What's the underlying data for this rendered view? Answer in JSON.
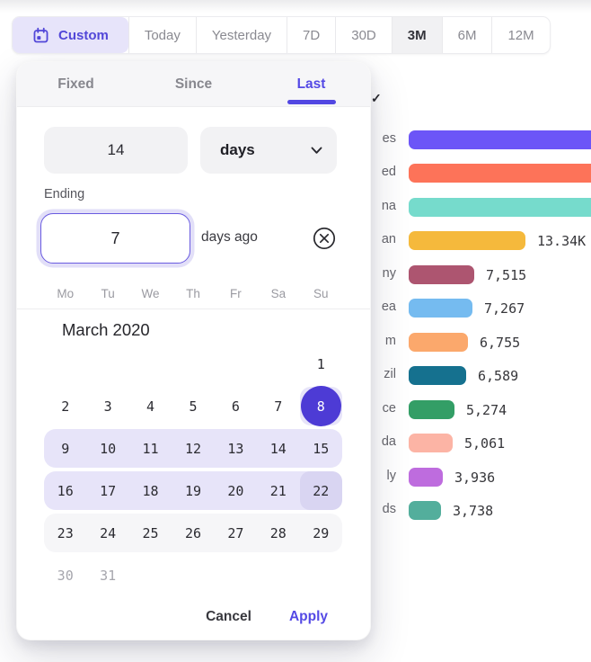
{
  "toolbar": {
    "custom": {
      "label": "Custom"
    },
    "items": [
      {
        "label": "Today",
        "active": false
      },
      {
        "label": "Yesterday",
        "active": false
      },
      {
        "label": "7D",
        "active": false
      },
      {
        "label": "30D",
        "active": false
      },
      {
        "label": "3M",
        "active": true
      },
      {
        "label": "6M",
        "active": false
      },
      {
        "label": "12M",
        "active": false
      }
    ]
  },
  "panel": {
    "tabs": [
      {
        "label": "Fixed",
        "active": false
      },
      {
        "label": "Since",
        "active": false
      },
      {
        "label": "Last",
        "active": true
      }
    ],
    "duration": {
      "value": "14",
      "unit": "days"
    },
    "ending": {
      "label": "Ending",
      "value": "7",
      "suffix": "days ago"
    },
    "calendar": {
      "weekdays": [
        "Mo",
        "Tu",
        "We",
        "Th",
        "Fr",
        "Sa",
        "Su"
      ],
      "month_title": "March 2020",
      "weeks": [
        {
          "style": "plain",
          "cells": [
            {
              "t": ""
            },
            {
              "t": ""
            },
            {
              "t": ""
            },
            {
              "t": ""
            },
            {
              "t": ""
            },
            {
              "t": ""
            },
            {
              "t": "1"
            }
          ]
        },
        {
          "style": "plain",
          "cells": [
            {
              "t": "2"
            },
            {
              "t": "3"
            },
            {
              "t": "4"
            },
            {
              "t": "5"
            },
            {
              "t": "6"
            },
            {
              "t": "7"
            },
            {
              "t": "8",
              "variant": "selected-start"
            }
          ]
        },
        {
          "style": "range",
          "cells": [
            {
              "t": "9"
            },
            {
              "t": "10"
            },
            {
              "t": "11"
            },
            {
              "t": "12"
            },
            {
              "t": "13"
            },
            {
              "t": "14"
            },
            {
              "t": "15"
            }
          ]
        },
        {
          "style": "range",
          "cells": [
            {
              "t": "16"
            },
            {
              "t": "17"
            },
            {
              "t": "18"
            },
            {
              "t": "19"
            },
            {
              "t": "20"
            },
            {
              "t": "21"
            },
            {
              "t": "22",
              "variant": "range-end"
            }
          ]
        },
        {
          "style": "hover",
          "cells": [
            {
              "t": "23"
            },
            {
              "t": "24"
            },
            {
              "t": "25"
            },
            {
              "t": "26"
            },
            {
              "t": "27"
            },
            {
              "t": "28"
            },
            {
              "t": "29"
            }
          ]
        },
        {
          "style": "plain",
          "cells": [
            {
              "t": "30",
              "variant": "muted"
            },
            {
              "t": "31",
              "variant": "muted"
            },
            {
              "t": ""
            },
            {
              "t": ""
            },
            {
              "t": ""
            },
            {
              "t": ""
            },
            {
              "t": ""
            }
          ]
        }
      ]
    },
    "footer": {
      "cancel": "Cancel",
      "apply": "Apply"
    }
  },
  "background": {
    "checkmark_glyph": "✓"
  },
  "colors": {
    "accent": "#5449E0",
    "selected_day": "#4D3BD5",
    "range_highlight": "#E7E4F9",
    "range_end_highlight": "#D9D5F2",
    "custom_button_bg": "#E7E4FA"
  },
  "chart_data": {
    "type": "bar",
    "orientation": "horizontal",
    "title": "",
    "xlabel": "",
    "ylabel": "",
    "legend": false,
    "grid": false,
    "categories": [
      "es",
      "ed",
      "na",
      "an",
      "ny",
      "ea",
      "m",
      "zil",
      "ce",
      "da",
      "ly",
      "ds"
    ],
    "values": [
      null,
      null,
      null,
      13340,
      7515,
      7267,
      6755,
      6589,
      5274,
      5061,
      3936,
      3738
    ],
    "value_labels": [
      "",
      "",
      "",
      "13.34K",
      "7,515",
      "7,267",
      "6,755",
      "6,589",
      "5,274",
      "5,061",
      "3,936",
      "3,738"
    ],
    "colors": [
      "#6C55F7",
      "#FD7359",
      "#76DBCC",
      "#F5B93C",
      "#AD5570",
      "#75BBF0",
      "#FBA86C",
      "#15718F",
      "#339E66",
      "#FCB4A5",
      "#BE6CDE",
      "#53AE9C"
    ],
    "layout": {
      "bars_clipped_right": [
        0,
        1,
        2
      ],
      "labels_truncated_by_overlay": true
    }
  }
}
